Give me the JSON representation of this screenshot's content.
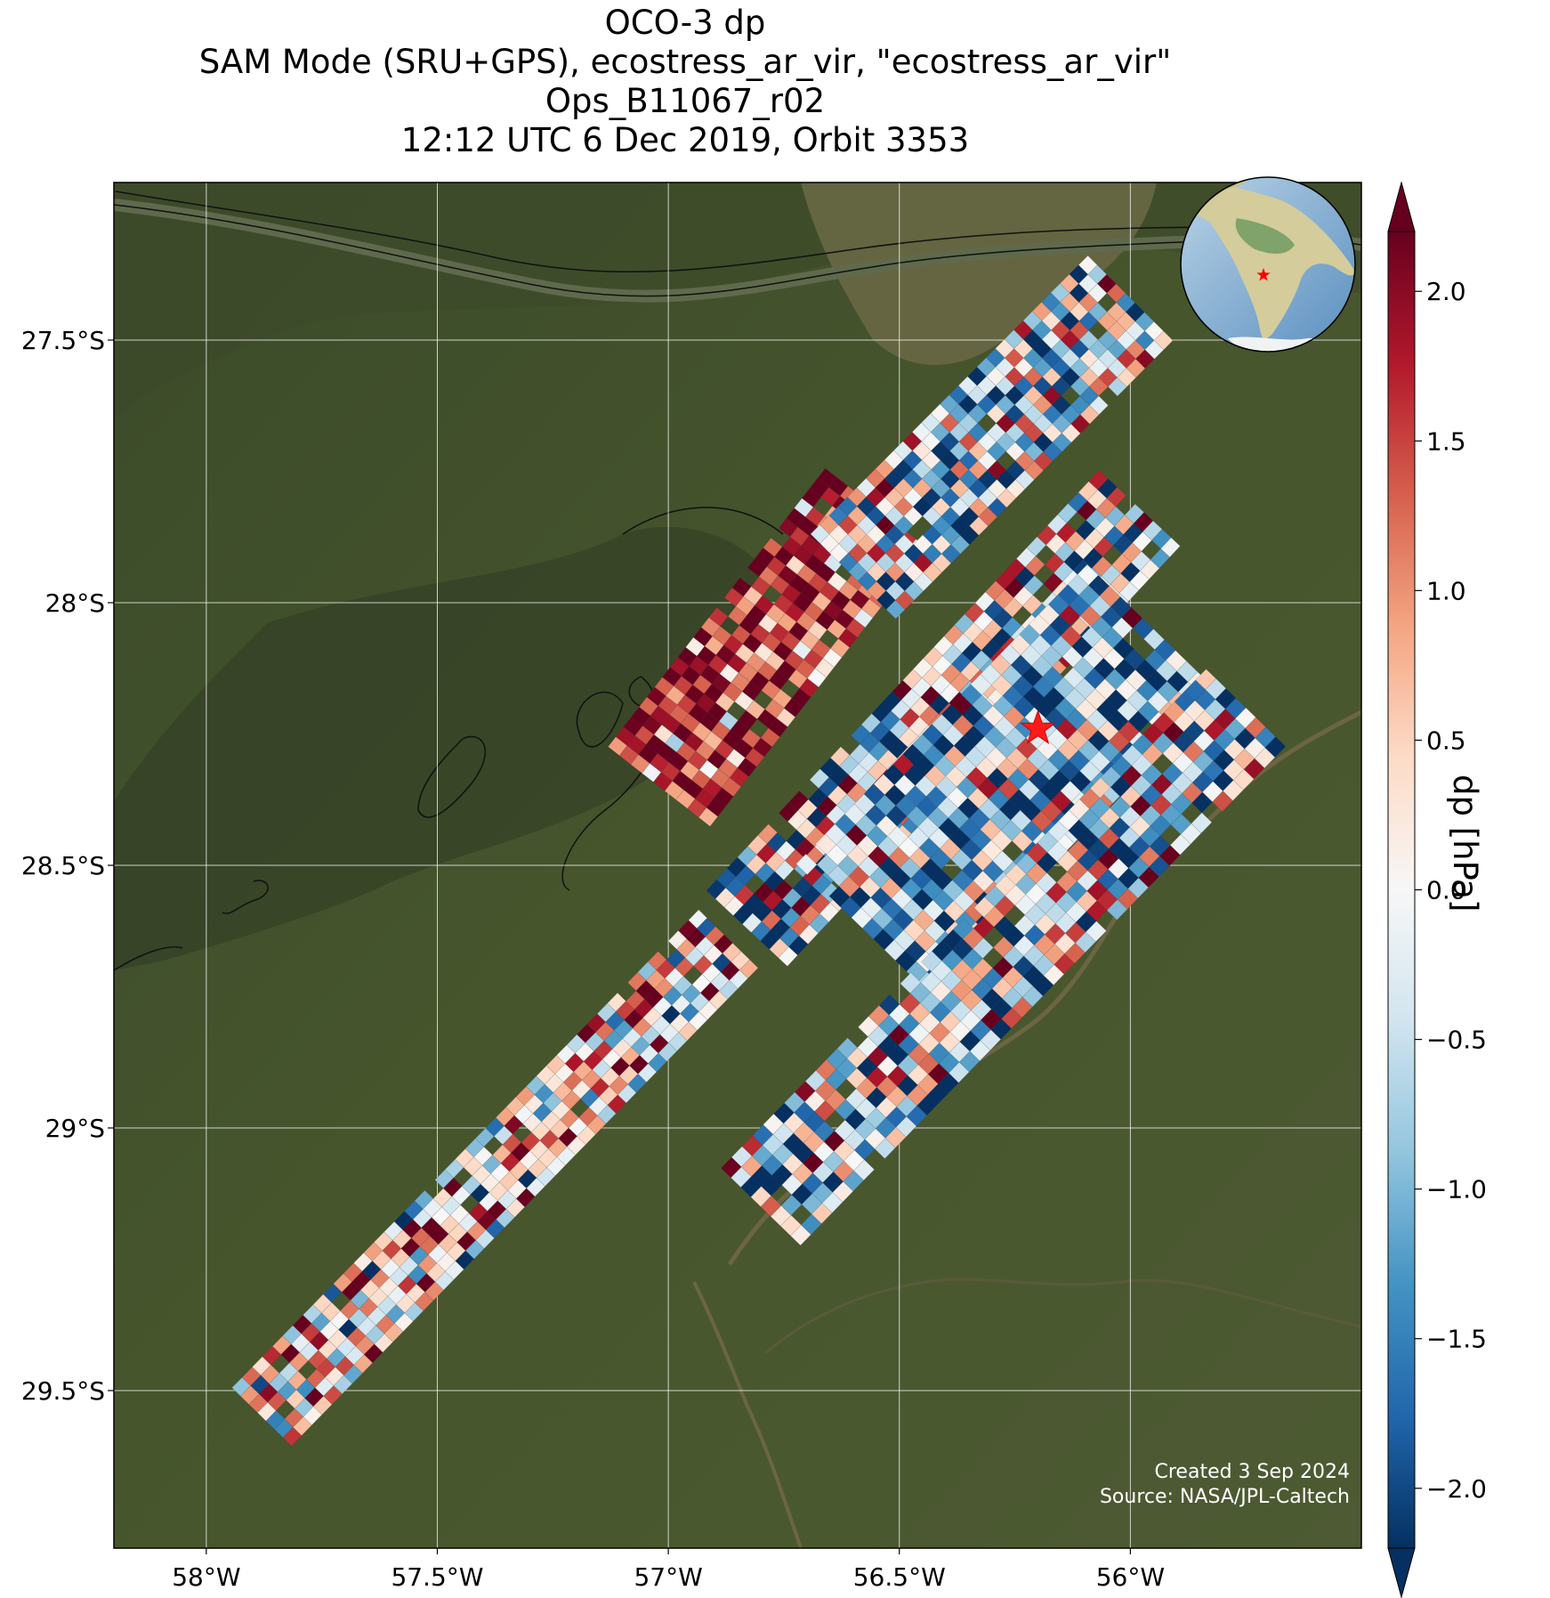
{
  "title": {
    "lines": [
      "OCO-3 dp",
      "SAM Mode (SRU+GPS), ecostress_ar_vir, \"ecostress_ar_vir\"",
      "Ops_B11067_r02",
      "12:12 UTC 6 Dec 2019, Orbit 3353"
    ]
  },
  "map": {
    "lon_range": [
      -58.2,
      -55.5
    ],
    "lat_range": [
      -29.8,
      -27.2
    ],
    "lon_ticks": [
      -58.0,
      -57.5,
      -57.0,
      -56.5,
      -56.0
    ],
    "lon_tick_labels": [
      "58°W",
      "57.5°W",
      "57°W",
      "56.5°W",
      "56°W"
    ],
    "lat_ticks": [
      -27.5,
      -28.0,
      -28.5,
      -29.0,
      -29.5
    ],
    "lat_tick_labels": [
      "27.5°S",
      "28°S",
      "28.5°S",
      "29°S",
      "29.5°S"
    ],
    "gridlines": true,
    "basemap": "satellite imagery",
    "target_marker": {
      "lon": -56.2,
      "lat": -28.24,
      "color": "#ff1a1a",
      "shape": "star-icon"
    },
    "inset_globe": {
      "placement": "top-right",
      "marker_color": "#ff0000"
    }
  },
  "colorbar": {
    "label": "dp [hPa]",
    "range": [
      -2.2,
      2.2
    ],
    "extend": "both",
    "colormap": "RdBu_r",
    "ticks": [
      2.0,
      1.5,
      1.0,
      0.5,
      0.0,
      -0.5,
      -1.0,
      -1.5,
      -2.0
    ],
    "tick_labels": [
      "2.0",
      "1.5",
      "1.0",
      "0.5",
      "0.0",
      "−0.5",
      "−1.0",
      "−1.5",
      "−2.0"
    ]
  },
  "credits": {
    "created": "Created 3 Sep 2024",
    "source": "Source: NASA/JPL-Caltech"
  },
  "swaths": [
    {
      "name": "swath-a",
      "start": [
        -57.88,
        -29.55
      ],
      "end": [
        -56.87,
        -28.64
      ],
      "half_width": 0.09,
      "rows": 46,
      "cols": 7,
      "seed": 11,
      "bias": 0.35,
      "spread": 1.3
    },
    {
      "name": "swath-b",
      "start": [
        -56.83,
        -28.62
      ],
      "end": [
        -55.98,
        -27.82
      ],
      "half_width": 0.12,
      "rows": 38,
      "cols": 9,
      "seed": 23,
      "bias": -0.2,
      "spread": 1.5
    },
    {
      "name": "swath-c",
      "start": [
        -56.58,
        -28.62
      ],
      "end": [
        -55.95,
        -28.05
      ],
      "half_width": 0.2,
      "rows": 30,
      "cols": 12,
      "seed": 37,
      "bias": -0.9,
      "spread": 1.3
    },
    {
      "name": "swath-d",
      "start": [
        -56.8,
        -29.15
      ],
      "end": [
        -55.75,
        -28.2
      ],
      "half_width": 0.12,
      "rows": 46,
      "cols": 8,
      "seed": 53,
      "bias": -0.4,
      "spread": 1.5
    },
    {
      "name": "swath-e",
      "start": [
        -57.02,
        -28.35
      ],
      "end": [
        -56.55,
        -27.82
      ],
      "half_width": 0.14,
      "rows": 28,
      "cols": 9,
      "seed": 71,
      "bias": 1.6,
      "spread": 0.9
    },
    {
      "name": "swath-f",
      "start": [
        -56.6,
        -27.95
      ],
      "end": [
        -56.0,
        -27.42
      ],
      "half_width": 0.13,
      "rows": 30,
      "cols": 9,
      "seed": 89,
      "bias": -0.5,
      "spread": 1.4
    }
  ]
}
